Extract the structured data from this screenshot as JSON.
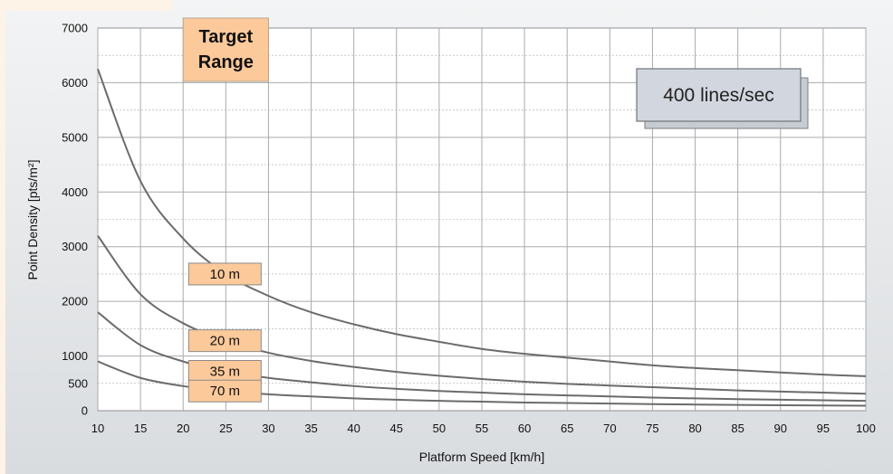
{
  "chart_data": {
    "type": "line",
    "xlabel": "Platform Speed [km/h]",
    "ylabel": "Point Density [pts/m²]",
    "xlim": [
      10,
      100
    ],
    "ylim": [
      0,
      7000
    ],
    "xticks": [
      "10",
      "15",
      "20",
      "25",
      "30",
      "35",
      "40",
      "45",
      "50",
      "55",
      "60",
      "65",
      "70",
      "75",
      "80",
      "85",
      "90",
      "95",
      "100"
    ],
    "yticks": [
      "0",
      "500",
      "1000",
      "2000",
      "3000",
      "4000",
      "5000",
      "6000",
      "7000"
    ],
    "grid": true,
    "target_range": {
      "label_line1": "Target",
      "label_line2": "Range",
      "x_from": 20,
      "x_to": 30
    },
    "rate_label": "400 lines/sec",
    "series": [
      {
        "name": "10 m",
        "x": [
          10,
          15,
          20,
          25,
          30,
          35,
          40,
          45,
          50,
          55,
          60,
          65,
          70,
          75,
          80,
          85,
          90,
          95,
          100
        ],
        "y": [
          6250,
          4200,
          3150,
          2500,
          2100,
          1800,
          1580,
          1400,
          1260,
          1130,
          1040,
          970,
          900,
          830,
          780,
          740,
          700,
          660,
          630
        ],
        "label_at": 25
      },
      {
        "name": "20 m",
        "x": [
          10,
          15,
          20,
          25,
          30,
          35,
          40,
          45,
          50,
          55,
          60,
          65,
          70,
          75,
          80,
          85,
          90,
          95,
          100
        ],
        "y": [
          3200,
          2130,
          1600,
          1280,
          1060,
          910,
          800,
          710,
          640,
          580,
          530,
          490,
          460,
          430,
          400,
          370,
          350,
          330,
          310
        ],
        "label_at": 25
      },
      {
        "name": "35 m",
        "x": [
          10,
          15,
          20,
          25,
          30,
          35,
          40,
          45,
          50,
          55,
          60,
          65,
          70,
          75,
          80,
          85,
          90,
          95,
          100
        ],
        "y": [
          1800,
          1200,
          900,
          720,
          600,
          520,
          450,
          400,
          360,
          330,
          300,
          280,
          260,
          240,
          225,
          210,
          200,
          190,
          180
        ],
        "label_at": 25
      },
      {
        "name": "70 m",
        "x": [
          10,
          15,
          20,
          25,
          30,
          35,
          40,
          45,
          50,
          55,
          60,
          65,
          70,
          75,
          80,
          85,
          90,
          95,
          100
        ],
        "y": [
          900,
          600,
          450,
          360,
          300,
          260,
          225,
          200,
          180,
          165,
          150,
          140,
          130,
          120,
          112,
          106,
          100,
          95,
          90
        ],
        "label_at": 25
      }
    ]
  },
  "colors": {
    "panel_bg": "#e8eaec",
    "grid": "#a8abae",
    "curve": "#6b6b6b",
    "label_fill": "#fcc99a",
    "label_border": "#8a8a8a",
    "range_fill": "#fcc99a",
    "rate_fill": "#d2d6df",
    "left_strip": "#fdf3e6"
  }
}
